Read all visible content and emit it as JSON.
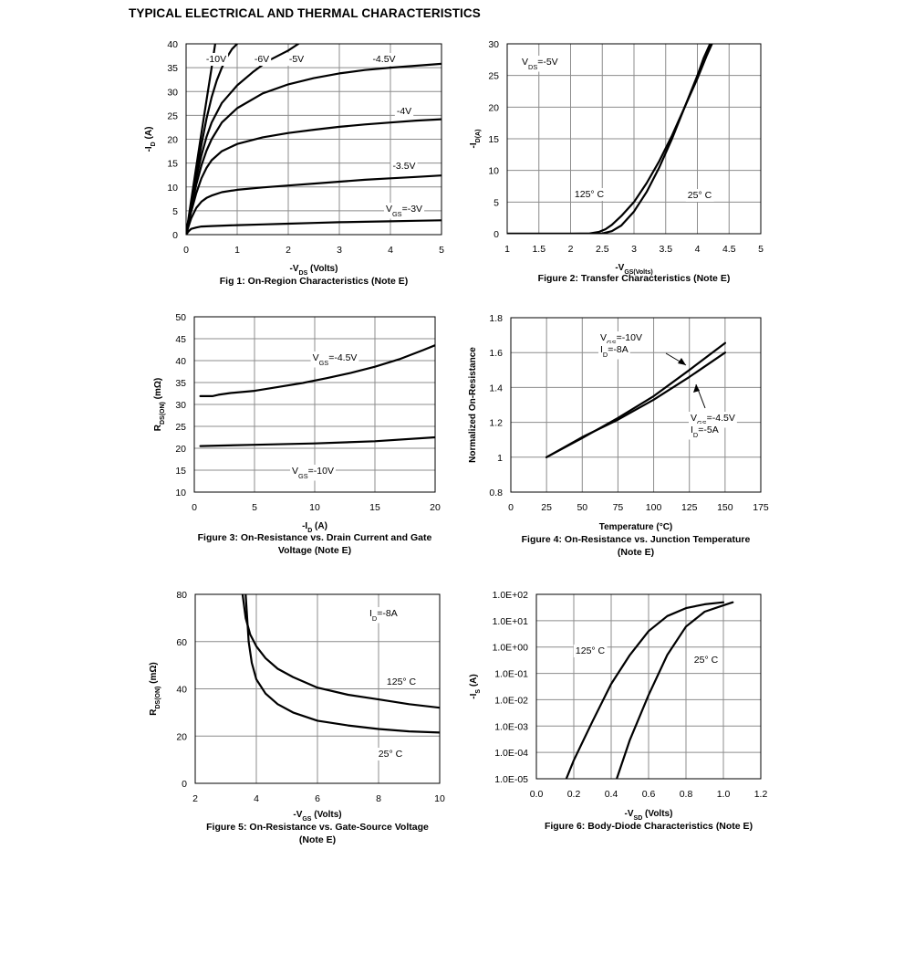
{
  "page_title": "TYPICAL ELECTRICAL AND THERMAL CHARACTERISTICS",
  "chart_data": [
    {
      "type": "line",
      "caption": "Fig 1: On-Region Characteristics (Note E)",
      "xlabel": "-V_DS (Volts)",
      "ylabel": "-I_D (A)",
      "xlim": [
        0,
        5
      ],
      "ylim": [
        0,
        40
      ],
      "xticks": [
        0,
        1,
        2,
        3,
        4,
        5
      ],
      "yticks": [
        0,
        5,
        10,
        15,
        20,
        25,
        30,
        35,
        40
      ],
      "grid": true,
      "series": [
        {
          "name": "-10V",
          "points": [
            [
              0,
              0
            ],
            [
              0.05,
              3.6
            ],
            [
              0.1,
              7.2
            ],
            [
              0.2,
              14.3
            ],
            [
              0.3,
              21.3
            ],
            [
              0.4,
              28.2
            ],
            [
              0.5,
              35
            ],
            [
              0.57,
              40
            ]
          ]
        },
        {
          "name": "-6V",
          "points": [
            [
              0,
              0
            ],
            [
              0.05,
              3.3
            ],
            [
              0.1,
              6.5
            ],
            [
              0.2,
              12.8
            ],
            [
              0.3,
              18.8
            ],
            [
              0.4,
              24.3
            ],
            [
              0.5,
              28.8
            ],
            [
              0.6,
              32.3
            ],
            [
              0.7,
              35
            ],
            [
              0.8,
              37.2
            ],
            [
              0.9,
              38.9
            ],
            [
              1.0,
              40
            ]
          ]
        },
        {
          "name": "-5V",
          "points": [
            [
              0,
              0
            ],
            [
              0.05,
              3.2
            ],
            [
              0.1,
              6.2
            ],
            [
              0.2,
              11.9
            ],
            [
              0.3,
              16.6
            ],
            [
              0.4,
              20.5
            ],
            [
              0.5,
              23.5
            ],
            [
              0.7,
              27.6
            ],
            [
              1.0,
              31.3
            ],
            [
              1.3,
              34
            ],
            [
              1.6,
              36.4
            ],
            [
              2.0,
              38.6
            ],
            [
              2.2,
              40
            ]
          ]
        },
        {
          "name": "-4.5V",
          "points": [
            [
              0,
              0
            ],
            [
              0.05,
              2.9
            ],
            [
              0.1,
              5.6
            ],
            [
              0.2,
              10.5
            ],
            [
              0.3,
              14.5
            ],
            [
              0.4,
              17.6
            ],
            [
              0.5,
              20
            ],
            [
              0.7,
              23.5
            ],
            [
              1.0,
              26.5
            ],
            [
              1.5,
              29.6
            ],
            [
              2.0,
              31.5
            ],
            [
              2.5,
              32.8
            ],
            [
              3.0,
              33.8
            ],
            [
              3.5,
              34.5
            ],
            [
              4.0,
              35
            ],
            [
              4.5,
              35.4
            ],
            [
              5.0,
              35.8
            ]
          ]
        },
        {
          "name": "-4V",
          "points": [
            [
              0,
              0
            ],
            [
              0.05,
              2.5
            ],
            [
              0.1,
              4.8
            ],
            [
              0.2,
              8.7
            ],
            [
              0.3,
              11.8
            ],
            [
              0.4,
              14
            ],
            [
              0.5,
              15.6
            ],
            [
              0.7,
              17.5
            ],
            [
              1.0,
              19
            ],
            [
              1.5,
              20.4
            ],
            [
              2.0,
              21.3
            ],
            [
              2.5,
              22
            ],
            [
              3.0,
              22.6
            ],
            [
              3.5,
              23.1
            ],
            [
              4.0,
              23.5
            ],
            [
              4.5,
              23.9
            ],
            [
              5.0,
              24.2
            ]
          ]
        },
        {
          "name": "-3.5V",
          "points": [
            [
              0,
              0
            ],
            [
              0.05,
              1.8
            ],
            [
              0.1,
              3.4
            ],
            [
              0.2,
              5.6
            ],
            [
              0.3,
              6.9
            ],
            [
              0.4,
              7.7
            ],
            [
              0.5,
              8.2
            ],
            [
              0.7,
              8.9
            ],
            [
              1.0,
              9.4
            ],
            [
              1.5,
              9.9
            ],
            [
              2.0,
              10.3
            ],
            [
              2.5,
              10.7
            ],
            [
              3.0,
              11.1
            ],
            [
              3.5,
              11.5
            ],
            [
              4.0,
              11.8
            ],
            [
              4.5,
              12.1
            ],
            [
              5.0,
              12.4
            ]
          ]
        },
        {
          "name": "V_GS=-3V",
          "points": [
            [
              0,
              0
            ],
            [
              0.05,
              0.7
            ],
            [
              0.1,
              1.2
            ],
            [
              0.2,
              1.5
            ],
            [
              0.3,
              1.7
            ],
            [
              0.5,
              1.8
            ],
            [
              1.0,
              2.0
            ],
            [
              1.5,
              2.15
            ],
            [
              2.0,
              2.3
            ],
            [
              2.5,
              2.45
            ],
            [
              3.0,
              2.6
            ],
            [
              3.5,
              2.7
            ],
            [
              4.0,
              2.8
            ],
            [
              4.5,
              2.9
            ],
            [
              5.0,
              3.0
            ]
          ]
        }
      ],
      "annotations": [
        "-10V",
        "-6V",
        "-5V",
        "-4.5V",
        "-4V",
        "-3.5V",
        "V_GS=-3V"
      ]
    },
    {
      "type": "line",
      "caption": "Figure 2: Transfer Characteristics (Note E)",
      "xlabel": "-V_GS(Volts)",
      "ylabel": "-I_D(A)",
      "xlim": [
        1,
        5
      ],
      "ylim": [
        0,
        30
      ],
      "xticks": [
        1,
        1.5,
        2,
        2.5,
        3,
        3.5,
        4,
        4.5,
        5
      ],
      "yticks": [
        0,
        5,
        10,
        15,
        20,
        25,
        30
      ],
      "grid": true,
      "series": [
        {
          "name": "125° C",
          "points": [
            [
              1,
              0
            ],
            [
              2,
              0
            ],
            [
              2.3,
              0.05
            ],
            [
              2.45,
              0.3
            ],
            [
              2.55,
              0.7
            ],
            [
              2.65,
              1.4
            ],
            [
              2.8,
              2.8
            ],
            [
              3.0,
              5.0
            ],
            [
              3.2,
              8.0
            ],
            [
              3.4,
              11.5
            ],
            [
              3.6,
              15.5
            ],
            [
              3.8,
              20.0
            ],
            [
              4.0,
              24.5
            ],
            [
              4.15,
              28.2
            ],
            [
              4.23,
              30
            ]
          ]
        },
        {
          "name": "25° C",
          "points": [
            [
              1,
              0
            ],
            [
              2.3,
              0
            ],
            [
              2.5,
              0.05
            ],
            [
              2.65,
              0.4
            ],
            [
              2.8,
              1.3
            ],
            [
              3.0,
              3.5
            ],
            [
              3.2,
              6.6
            ],
            [
              3.4,
              10.5
            ],
            [
              3.6,
              15.0
            ],
            [
              3.8,
              20.0
            ],
            [
              4.0,
              25.0
            ],
            [
              4.1,
              27.8
            ],
            [
              4.2,
              30
            ]
          ]
        }
      ],
      "annotations": [
        "V_DS=-5V",
        "125° C",
        "25° C"
      ]
    },
    {
      "type": "line",
      "caption": "Figure 3: On-Resistance vs. Drain Current and Gate Voltage (Note E)",
      "caption_lines": [
        "Figure 3: On-Resistance vs. Drain Current and Gate",
        "Voltage (Note E)"
      ],
      "xlabel": "-I_D (A)",
      "ylabel": "R_DS(ON) (mΩ)",
      "xlim": [
        0,
        20
      ],
      "ylim": [
        10,
        50
      ],
      "xticks": [
        0,
        5,
        10,
        15,
        20
      ],
      "yticks": [
        10,
        15,
        20,
        25,
        30,
        35,
        40,
        45,
        50
      ],
      "grid": true,
      "series": [
        {
          "name": "V_GS=-4.5V",
          "points": [
            [
              0.5,
              31.9
            ],
            [
              1.5,
              31.9
            ],
            [
              2,
              32.2
            ],
            [
              3,
              32.6
            ],
            [
              5,
              33.1
            ],
            [
              7,
              34
            ],
            [
              9,
              34.9
            ],
            [
              11,
              36
            ],
            [
              13,
              37.2
            ],
            [
              15,
              38.6
            ],
            [
              17,
              40.3
            ],
            [
              19,
              42.4
            ],
            [
              20,
              43.5
            ]
          ]
        },
        {
          "name": "V_GS=-10V",
          "points": [
            [
              0.5,
              20.5
            ],
            [
              2,
              20.6
            ],
            [
              5,
              20.8
            ],
            [
              10,
              21.1
            ],
            [
              15,
              21.6
            ],
            [
              20,
              22.5
            ]
          ]
        }
      ],
      "annotations": [
        "V_GS=-4.5V",
        "V_GS=-10V"
      ]
    },
    {
      "type": "line",
      "caption": "Figure 4: On-Resistance vs. Junction Temperature (Note E)",
      "caption_lines": [
        "Figure 4: On-Resistance vs. Junction Temperature",
        "(Note E)"
      ],
      "xlabel": "Temperature (°C)",
      "ylabel": "Normalized On-Resistance",
      "xlim": [
        0,
        175
      ],
      "ylim": [
        0.8,
        1.8
      ],
      "xticks": [
        0,
        25,
        50,
        75,
        100,
        125,
        150,
        175
      ],
      "yticks": [
        0.8,
        1,
        1.2,
        1.4,
        1.6,
        1.8
      ],
      "grid": true,
      "series": [
        {
          "name": "V_GS=-10V, I_D=-8A",
          "points": [
            [
              25,
              1
            ],
            [
              50,
              1.11
            ],
            [
              75,
              1.225
            ],
            [
              100,
              1.35
            ],
            [
              125,
              1.5
            ],
            [
              150,
              1.655
            ]
          ]
        },
        {
          "name": "V_GS=-4.5V, I_D=-5A",
          "points": [
            [
              25,
              1
            ],
            [
              50,
              1.115
            ],
            [
              75,
              1.215
            ],
            [
              100,
              1.33
            ],
            [
              125,
              1.46
            ],
            [
              150,
              1.6
            ]
          ]
        }
      ],
      "annotations": [
        "V_GS=-10V",
        "I_D=-8A",
        "V_GS=-4.5V",
        "I_D=-5A"
      ]
    },
    {
      "type": "line",
      "caption": "Figure 5: On-Resistance vs. Gate-Source Voltage (Note E)",
      "caption_lines": [
        "Figure 5: On-Resistance vs. Gate-Source Voltage",
        "(Note E)"
      ],
      "xlabel": "-V_GS (Volts)",
      "ylabel": "R_DS(ON) (mΩ)",
      "xlim": [
        2,
        10
      ],
      "ylim": [
        0,
        80
      ],
      "xticks": [
        2,
        4,
        6,
        8,
        10
      ],
      "yticks": [
        0,
        20,
        40,
        60,
        80
      ],
      "grid": true,
      "series": [
        {
          "name": "125° C",
          "points": [
            [
              3.55,
              80
            ],
            [
              3.65,
              70
            ],
            [
              3.8,
              63
            ],
            [
              4,
              58
            ],
            [
              4.3,
              53
            ],
            [
              4.7,
              48.5
            ],
            [
              5.2,
              45
            ],
            [
              6,
              40.5
            ],
            [
              7,
              37.5
            ],
            [
              8,
              35.5
            ],
            [
              9,
              33.5
            ],
            [
              10,
              32
            ]
          ]
        },
        {
          "name": "25° C",
          "points": [
            [
              3.65,
              80
            ],
            [
              3.75,
              60
            ],
            [
              3.85,
              51
            ],
            [
              4,
              44
            ],
            [
              4.3,
              38
            ],
            [
              4.7,
              33.5
            ],
            [
              5.2,
              30
            ],
            [
              6,
              26.5
            ],
            [
              7,
              24.5
            ],
            [
              8,
              23
            ],
            [
              9,
              22
            ],
            [
              10,
              21.5
            ]
          ]
        }
      ],
      "annotations": [
        "I_D=-8A",
        "125° C",
        "25° C"
      ]
    },
    {
      "type": "line",
      "caption": "Figure 6: Body-Diode Characteristics (Note E)",
      "xlabel": "-V_SD (Volts)",
      "ylabel": "-I_S (A)",
      "xlim": [
        0,
        1.2
      ],
      "ylim": [
        1e-05,
        100
      ],
      "yscale": "log",
      "xticks": [
        0.0,
        0.2,
        0.4,
        0.6,
        0.8,
        1.0,
        1.2
      ],
      "xtick_labels": [
        "0.0",
        "0.2",
        "0.4",
        "0.6",
        "0.8",
        "1.0",
        "1.2"
      ],
      "yticks": [
        1e-05,
        0.0001,
        0.001,
        0.01,
        0.1,
        1,
        10,
        100
      ],
      "ytick_labels": [
        "1.0E-05",
        "1.0E-04",
        "1.0E-03",
        "1.0E-02",
        "1.0E-01",
        "1.0E+00",
        "1.0E+01",
        "1.0E+02"
      ],
      "grid": true,
      "series": [
        {
          "name": "125° C",
          "points": [
            [
              0.16,
              1e-05
            ],
            [
              0.2,
              5e-05
            ],
            [
              0.3,
              0.0015
            ],
            [
              0.4,
              0.04
            ],
            [
              0.5,
              0.5
            ],
            [
              0.6,
              4
            ],
            [
              0.7,
              15
            ],
            [
              0.8,
              30
            ],
            [
              0.9,
              42
            ],
            [
              1.0,
              50
            ]
          ]
        },
        {
          "name": "25° C",
          "points": [
            [
              0.43,
              1e-05
            ],
            [
              0.5,
              0.0003
            ],
            [
              0.6,
              0.015
            ],
            [
              0.7,
              0.5
            ],
            [
              0.8,
              6
            ],
            [
              0.9,
              22
            ],
            [
              1.0,
              38
            ],
            [
              1.05,
              50
            ]
          ]
        }
      ],
      "annotations": [
        "125° C",
        "25° C"
      ]
    }
  ]
}
